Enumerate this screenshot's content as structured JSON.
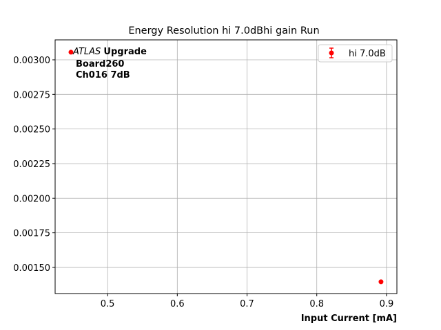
{
  "chart_data": {
    "type": "scatter",
    "title": "Energy Resolution hi 7.0dBhi gain Run",
    "xlabel": "Input Current [mA]",
    "ylabel": "",
    "xlim": [
      0.4248,
      0.9149
    ],
    "ylim": [
      0.001311,
      0.003144
    ],
    "xticks": [
      0.5,
      0.6,
      0.7,
      0.8,
      0.9
    ],
    "xtick_labels": [
      "0.5",
      "0.6",
      "0.7",
      "0.8",
      "0.9"
    ],
    "yticks": [
      0.0015,
      0.00175,
      0.002,
      0.00225,
      0.0025,
      0.00275,
      0.003
    ],
    "ytick_labels": [
      "0.00150",
      "0.00175",
      "0.00200",
      "0.00225",
      "0.00250",
      "0.00275",
      "0.00300"
    ],
    "grid": true,
    "legend_placement": "top-right",
    "series": [
      {
        "name": "hi 7.0dB",
        "color": "#ff0000",
        "x": [
          0.4475,
          0.8921
        ],
        "y": [
          0.003055,
          0.001396
        ]
      }
    ],
    "annotation": {
      "italic": "ATLAS",
      "bold": "Upgrade",
      "lines": [
        "Board260",
        "Ch016 7dB"
      ]
    }
  }
}
